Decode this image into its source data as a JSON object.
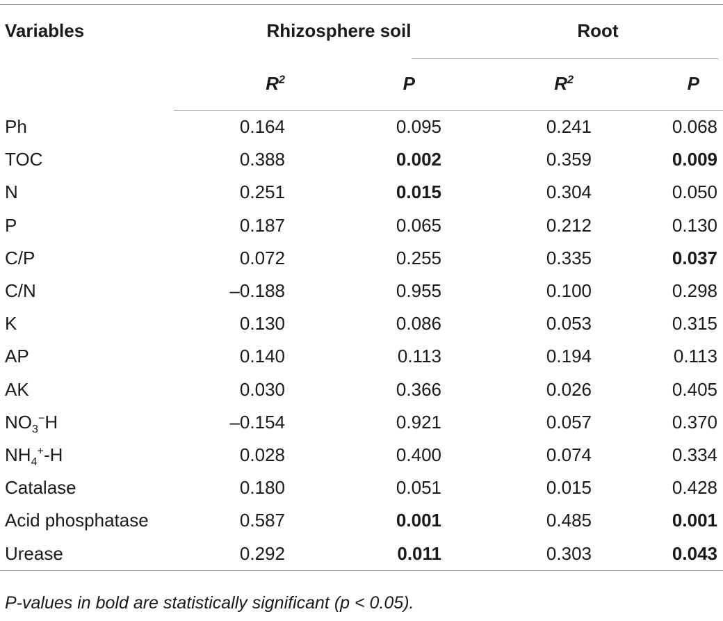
{
  "table": {
    "header": {
      "variables": "Variables",
      "group1": "Rhizosphere soil",
      "group2": "Root",
      "r2": "R",
      "r2_sup": "2",
      "p": "P"
    },
    "rows": [
      {
        "label": "Ph",
        "soil_r2": "0.164",
        "soil_p": "0.095",
        "soil_sig": false,
        "root_r2": "0.241",
        "root_p": "0.068",
        "root_sig": false
      },
      {
        "label": "TOC",
        "soil_r2": "0.388",
        "soil_p": "0.002",
        "soil_sig": true,
        "root_r2": "0.359",
        "root_p": "0.009",
        "root_sig": true
      },
      {
        "label": "N",
        "soil_r2": "0.251",
        "soil_p": "0.015",
        "soil_sig": true,
        "root_r2": "0.304",
        "root_p": "0.050",
        "root_sig": false
      },
      {
        "label": "P",
        "soil_r2": "0.187",
        "soil_p": "0.065",
        "soil_sig": false,
        "root_r2": "0.212",
        "root_p": "0.130",
        "root_sig": false
      },
      {
        "label": "C/P",
        "soil_r2": "0.072",
        "soil_p": "0.255",
        "soil_sig": false,
        "root_r2": "0.335",
        "root_p": "0.037",
        "root_sig": true
      },
      {
        "label": "C/N",
        "soil_r2": "–0.188",
        "soil_p": "0.955",
        "soil_sig": false,
        "root_r2": "0.100",
        "root_p": "0.298",
        "root_sig": false
      },
      {
        "label": "K",
        "soil_r2": "0.130",
        "soil_p": "0.086",
        "soil_sig": false,
        "root_r2": "0.053",
        "root_p": "0.315",
        "root_sig": false
      },
      {
        "label": "AP",
        "soil_r2": "0.140",
        "soil_p": "0.113",
        "soil_sig": false,
        "root_r2": "0.194",
        "root_p": "0.113",
        "root_sig": false
      },
      {
        "label": "AK",
        "soil_r2": "0.030",
        "soil_p": "0.366",
        "soil_sig": false,
        "root_r2": "0.026",
        "root_p": "0.405",
        "root_sig": false
      },
      {
        "label": "NO3−H",
        "label_parts": {
          "pre": "NO",
          "sub": "3",
          "sup": "−",
          "post": "H"
        },
        "soil_r2": "–0.154",
        "soil_p": "0.921",
        "soil_sig": false,
        "root_r2": "0.057",
        "root_p": "0.370",
        "root_sig": false
      },
      {
        "label": "NH4+-H",
        "label_parts": {
          "pre": "NH",
          "sub": "4",
          "sup": "+",
          "post": "-H"
        },
        "soil_r2": "0.028",
        "soil_p": "0.400",
        "soil_sig": false,
        "root_r2": "0.074",
        "root_p": "0.334",
        "root_sig": false
      },
      {
        "label": "Catalase",
        "soil_r2": "0.180",
        "soil_p": "0.051",
        "soil_sig": false,
        "root_r2": "0.015",
        "root_p": "0.428",
        "root_sig": false
      },
      {
        "label": "Acid phosphatase",
        "soil_r2": "0.587",
        "soil_p": "0.001",
        "soil_sig": true,
        "root_r2": "0.485",
        "root_p": "0.001",
        "root_sig": true
      },
      {
        "label": "Urease",
        "soil_r2": "0.292",
        "soil_p": "0.011",
        "soil_sig": true,
        "root_r2": "0.303",
        "root_p": "0.043",
        "root_sig": true
      }
    ],
    "footnote": "P-values in bold are statistically significant (p < 0.05)."
  }
}
